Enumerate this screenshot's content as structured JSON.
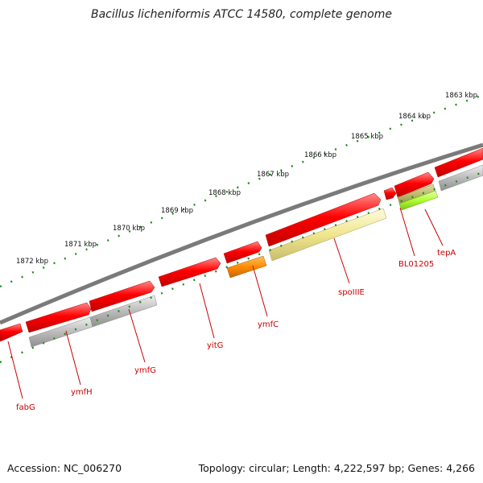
{
  "title": "Bacillus licheniformis ATCC 14580, complete genome",
  "footer": {
    "accession": "Accession: NC_006270",
    "topology": "Topology: circular; Length: 4,222,597 bp; Genes: 4,266"
  },
  "ruler_labels": [
    "1872 kbp",
    "1871 kbp",
    "1870 kbp",
    "1869 kbp",
    "1868 kbp",
    "1867 kbp",
    "1866 kbp",
    "1865 kbp",
    "1864 kbp",
    "1863 kbp"
  ],
  "gene_labels": [
    "fabG",
    "ymfH",
    "ymfG",
    "yitG",
    "ymfC",
    "spoIIIE",
    "BL01205",
    "tepA"
  ],
  "colors": {
    "forward_gene": "#ff0000",
    "backbone": "#7a7a7a",
    "tick": "#228b22",
    "gene_label": "#cc0000",
    "grey_feature": "#b4b4b4",
    "orange_feature": "#ff8c00",
    "yellow_feature": "#f0e68c",
    "khaki_feature": "#bdb76b",
    "green_feature": "#adff2f"
  }
}
